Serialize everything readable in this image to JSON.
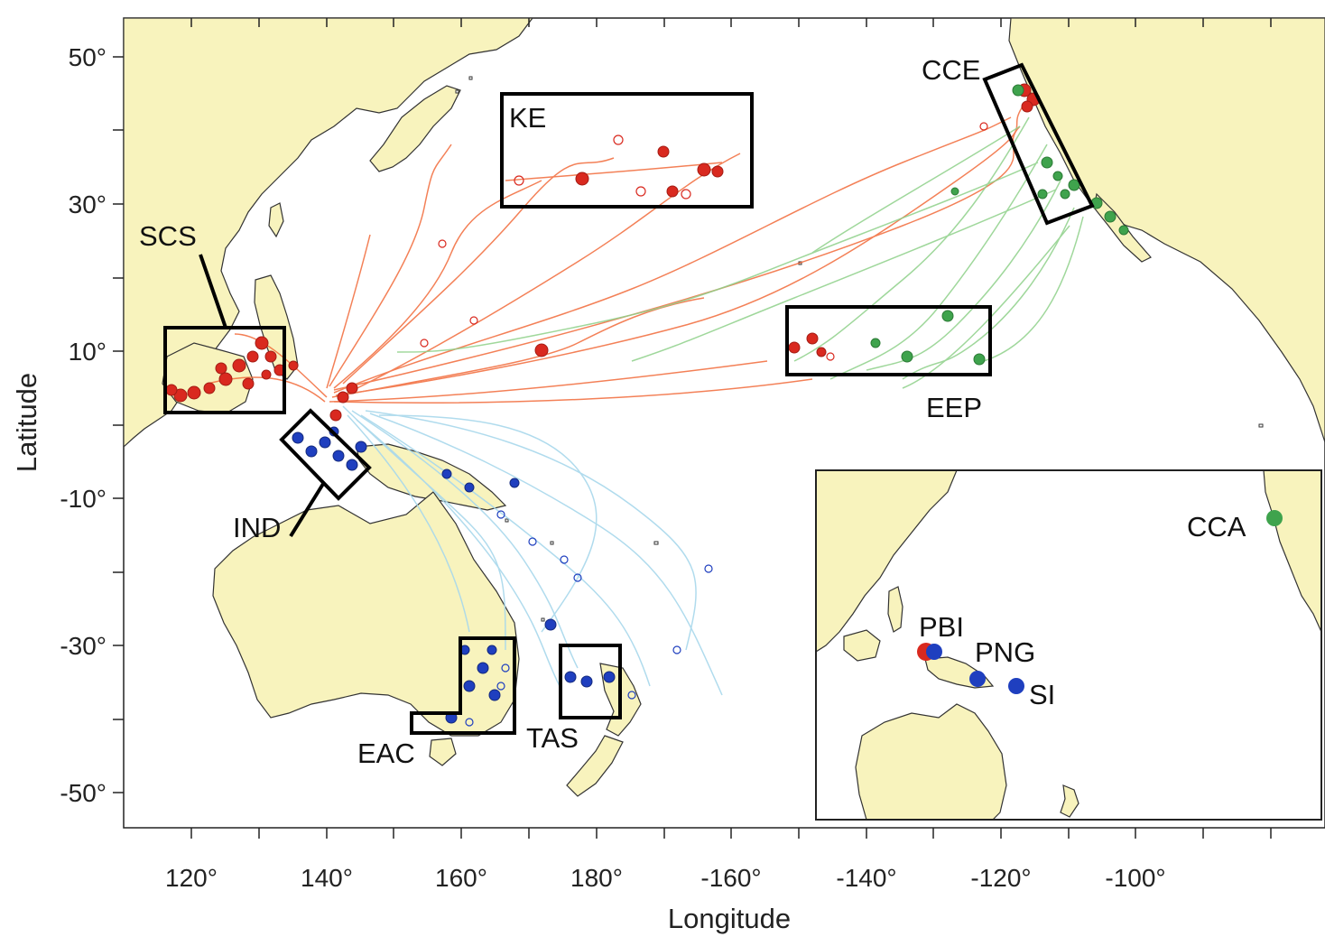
{
  "axes": {
    "x_label": "Longitude",
    "y_label": "Latitude",
    "x_ticks": [
      "120°",
      "140°",
      "160°",
      "180°",
      "-160°",
      "-140°",
      "-120°",
      "-100°"
    ],
    "y_ticks": [
      "50°",
      "30°",
      "10°",
      "-10°",
      "-30°",
      "-50°"
    ]
  },
  "regions": [
    {
      "label": "KE"
    },
    {
      "label": "CCE"
    },
    {
      "label": "SCS"
    },
    {
      "label": "EEP"
    },
    {
      "label": "IND"
    },
    {
      "label": "EAC"
    },
    {
      "label": "TAS"
    }
  ],
  "inset": {
    "sites": [
      {
        "label": "CCA",
        "color": "#3fa34d"
      },
      {
        "label": "PBI",
        "color": "#d9291f"
      },
      {
        "label": "PNG",
        "color": "#1f3fbf"
      },
      {
        "label": "SI",
        "color": "#1f3fbf"
      }
    ]
  },
  "colors": {
    "land": "#f8f3bd",
    "track_north": "#f26b3a",
    "track_east": "#8fd18a",
    "track_south": "#a8d8ec",
    "marker_red": "#d9291f",
    "marker_green": "#3fa34d",
    "marker_blue": "#1f3fbf"
  }
}
